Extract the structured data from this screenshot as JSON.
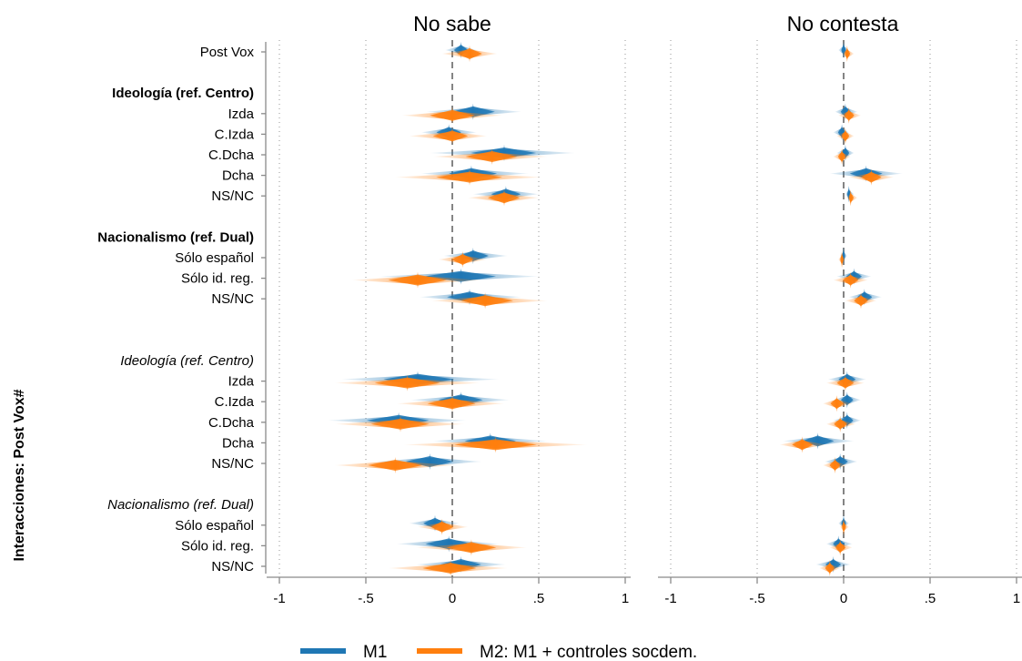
{
  "colors": {
    "m1": "#1f77b4",
    "m2": "#ff7f0e",
    "axis": "#8a8a8a"
  },
  "chart_data": {
    "type": "coefficient-plot",
    "ylabel": "Interacciones: Post Vox#",
    "xlim": [
      -1,
      1
    ],
    "xticks": [
      -1,
      -0.5,
      0,
      0.5,
      1
    ],
    "xtick_labels": [
      "-1",
      "-.5",
      "0",
      ".5",
      "1"
    ],
    "grid": "vertical dotted",
    "reference_line": 0,
    "legend_position": "bottom",
    "series": [
      {
        "name": "M1",
        "color": "#1f77b4"
      },
      {
        "name": "M2: M1 + controles socdem.",
        "color": "#ff7f0e"
      }
    ],
    "rows": [
      {
        "label": "Post Vox",
        "style": "normal",
        "slot": 0
      },
      {
        "label": "Ideología (ref. Centro)",
        "style": "bold",
        "slot": 2,
        "header": true
      },
      {
        "label": "Izda",
        "style": "normal",
        "slot": 3
      },
      {
        "label": "C.Izda",
        "style": "normal",
        "slot": 4
      },
      {
        "label": "C.Dcha",
        "style": "normal",
        "slot": 5
      },
      {
        "label": "Dcha",
        "style": "normal",
        "slot": 6
      },
      {
        "label": "NS/NC",
        "style": "normal",
        "slot": 7
      },
      {
        "label": "Nacionalismo (ref. Dual)",
        "style": "bold",
        "slot": 9,
        "header": true
      },
      {
        "label": "Sólo español",
        "style": "normal",
        "slot": 10
      },
      {
        "label": "Sólo id. reg.",
        "style": "normal",
        "slot": 11
      },
      {
        "label": "NS/NC",
        "style": "normal",
        "slot": 12
      },
      {
        "label": "Ideología (ref. Centro)",
        "style": "italic",
        "slot": 15,
        "header": true
      },
      {
        "label": "Izda",
        "style": "normal",
        "slot": 16
      },
      {
        "label": "C.Izda",
        "style": "normal",
        "slot": 17
      },
      {
        "label": "C.Dcha",
        "style": "normal",
        "slot": 18
      },
      {
        "label": "Dcha",
        "style": "normal",
        "slot": 19
      },
      {
        "label": "NS/NC",
        "style": "normal",
        "slot": 20
      },
      {
        "label": "Nacionalismo (ref. Dual)",
        "style": "italic",
        "slot": 22,
        "header": true
      },
      {
        "label": "Sólo español",
        "style": "normal",
        "slot": 23
      },
      {
        "label": "Sólo id. reg.",
        "style": "normal",
        "slot": 24
      },
      {
        "label": "NS/NC",
        "style": "normal",
        "slot": 25
      }
    ],
    "panels": [
      {
        "title": "No sabe",
        "estimates": [
          {
            "slot": 0,
            "m1": [
              0.05,
              -0.04,
              0.14
            ],
            "m2": [
              0.1,
              -0.06,
              0.26
            ]
          },
          {
            "slot": 3,
            "m1": [
              0.12,
              -0.15,
              0.4
            ],
            "m2": [
              0.0,
              -0.29,
              0.29
            ]
          },
          {
            "slot": 4,
            "m1": [
              -0.02,
              -0.18,
              0.14
            ],
            "m2": [
              0.0,
              -0.25,
              0.2
            ]
          },
          {
            "slot": 5,
            "m1": [
              0.3,
              -0.13,
              0.71
            ],
            "m2": [
              0.23,
              -0.11,
              0.55
            ]
          },
          {
            "slot": 6,
            "m1": [
              0.11,
              -0.18,
              0.44
            ],
            "m2": [
              0.1,
              -0.33,
              0.52
            ]
          },
          {
            "slot": 7,
            "m1": [
              0.31,
              0.12,
              0.5
            ],
            "m2": [
              0.3,
              0.09,
              0.5
            ]
          },
          {
            "slot": 10,
            "m1": [
              0.12,
              -0.05,
              0.32
            ],
            "m2": [
              0.06,
              -0.08,
              0.2
            ]
          },
          {
            "slot": 11,
            "m1": [
              0.05,
              -0.42,
              0.5
            ],
            "m2": [
              -0.2,
              -0.58,
              0.17
            ]
          },
          {
            "slot": 12,
            "m1": [
              0.1,
              -0.19,
              0.4
            ],
            "m2": [
              0.19,
              -0.12,
              0.55
            ]
          },
          {
            "slot": 16,
            "m1": [
              -0.2,
              -0.64,
              0.27
            ],
            "m2": [
              -0.26,
              -0.68,
              0.16
            ]
          },
          {
            "slot": 17,
            "m1": [
              0.05,
              -0.24,
              0.33
            ],
            "m2": [
              0.0,
              -0.32,
              0.3
            ]
          },
          {
            "slot": 18,
            "m1": [
              -0.31,
              -0.72,
              0.08
            ],
            "m2": [
              -0.3,
              -0.68,
              0.07
            ]
          },
          {
            "slot": 19,
            "m1": [
              0.22,
              -0.11,
              0.55
            ],
            "m2": [
              0.25,
              -0.28,
              0.78
            ]
          },
          {
            "slot": 20,
            "m1": [
              -0.13,
              -0.44,
              0.17
            ],
            "m2": [
              -0.33,
              -0.68,
              0.02
            ]
          },
          {
            "slot": 23,
            "m1": [
              -0.1,
              -0.25,
              0.04
            ],
            "m2": [
              -0.06,
              -0.2,
              0.09
            ]
          },
          {
            "slot": 24,
            "m1": [
              -0.02,
              -0.32,
              0.27
            ],
            "m2": [
              0.11,
              -0.21,
              0.43
            ]
          },
          {
            "slot": 25,
            "m1": [
              0.05,
              -0.21,
              0.31
            ],
            "m2": [
              -0.01,
              -0.37,
              0.32
            ]
          }
        ]
      },
      {
        "title": "No contesta",
        "estimates": [
          {
            "slot": 0,
            "m1": [
              0.0,
              -0.03,
              0.03
            ],
            "m2": [
              0.02,
              -0.01,
              0.06
            ]
          },
          {
            "slot": 3,
            "m1": [
              0.01,
              -0.05,
              0.08
            ],
            "m2": [
              0.03,
              -0.03,
              0.1
            ]
          },
          {
            "slot": 4,
            "m1": [
              -0.01,
              -0.06,
              0.03
            ],
            "m2": [
              0.01,
              -0.04,
              0.06
            ]
          },
          {
            "slot": 5,
            "m1": [
              0.01,
              -0.04,
              0.06
            ],
            "m2": [
              -0.01,
              -0.06,
              0.04
            ]
          },
          {
            "slot": 6,
            "m1": [
              0.13,
              -0.08,
              0.34
            ],
            "m2": [
              0.16,
              0.03,
              0.29
            ]
          },
          {
            "slot": 7,
            "m1": [
              0.03,
              0.01,
              0.06
            ],
            "m2": [
              0.04,
              0.02,
              0.08
            ]
          },
          {
            "slot": 10,
            "m1": [
              0.0,
              -0.02,
              0.02
            ],
            "m2": [
              -0.01,
              -0.03,
              0.01
            ]
          },
          {
            "slot": 11,
            "m1": [
              0.06,
              -0.04,
              0.16
            ],
            "m2": [
              0.04,
              -0.06,
              0.14
            ]
          },
          {
            "slot": 12,
            "m1": [
              0.12,
              0.03,
              0.22
            ],
            "m2": [
              0.1,
              0.01,
              0.19
            ]
          },
          {
            "slot": 16,
            "m1": [
              0.02,
              -0.09,
              0.13
            ],
            "m2": [
              0.01,
              -0.1,
              0.12
            ]
          },
          {
            "slot": 17,
            "m1": [
              0.02,
              -0.06,
              0.1
            ],
            "m2": [
              -0.04,
              -0.12,
              0.05
            ]
          },
          {
            "slot": 18,
            "m1": [
              0.02,
              -0.06,
              0.1
            ],
            "m2": [
              -0.02,
              -0.1,
              0.07
            ]
          },
          {
            "slot": 19,
            "m1": [
              -0.15,
              -0.35,
              0.06
            ],
            "m2": [
              -0.24,
              -0.37,
              -0.1
            ]
          },
          {
            "slot": 20,
            "m1": [
              -0.02,
              -0.11,
              0.08
            ],
            "m2": [
              -0.05,
              -0.12,
              0.02
            ]
          },
          {
            "slot": 23,
            "m1": [
              0.0,
              -0.03,
              0.03
            ],
            "m2": [
              0.0,
              -0.02,
              0.03
            ]
          },
          {
            "slot": 24,
            "m1": [
              -0.03,
              -0.1,
              0.05
            ],
            "m2": [
              -0.02,
              -0.08,
              0.05
            ]
          },
          {
            "slot": 25,
            "m1": [
              -0.06,
              -0.16,
              0.04
            ],
            "m2": [
              -0.08,
              -0.14,
              -0.02
            ]
          }
        ]
      }
    ]
  }
}
